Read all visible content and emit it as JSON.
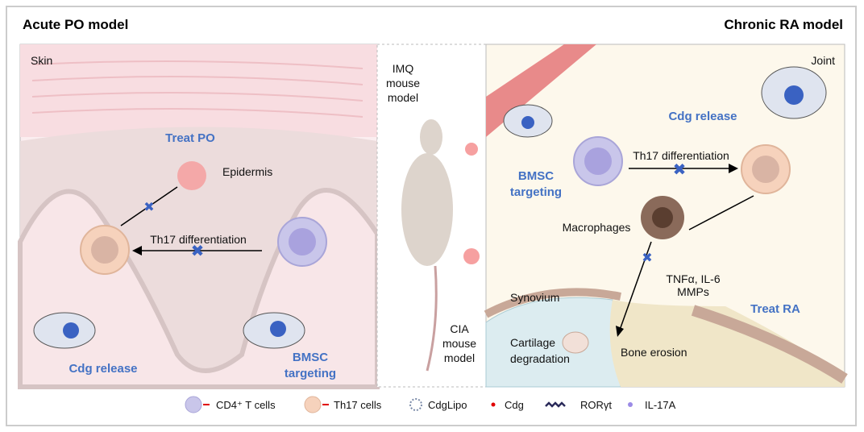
{
  "titles": {
    "left": "Acute PO model",
    "right": "Chronic RA model"
  },
  "left_panel": {
    "region": "Skin",
    "treat": "Treat PO",
    "epidermis": "Epidermis",
    "differentiation": "Th17  differentiation",
    "release": "Cdg release",
    "targeting_1": "BMSC",
    "targeting_2": "targeting"
  },
  "center": {
    "imq_1": "IMQ",
    "imq_2": "mouse",
    "imq_3": "model",
    "cia_1": "CIA",
    "cia_2": "mouse",
    "cia_3": "model"
  },
  "right_panel": {
    "region": "Joint",
    "release": "Cdg release",
    "targeting_1": "BMSC",
    "targeting_2": "targeting",
    "differentiation": "Th17  differentiation",
    "macrophages": "Macrophages",
    "cytokines_1": "TNFα, IL-6",
    "cytokines_2": "MMPs",
    "synovium": "Synovium",
    "treat": "Treat RA",
    "cartilage_1": "Cartilage",
    "cartilage_2": "degradation",
    "bone": "Bone erosion"
  },
  "legend": [
    {
      "label": "CD4⁺ T cells",
      "icon": "cd4-t-cell-icon"
    },
    {
      "label": "Th17 cells",
      "icon": "th17-cell-icon"
    },
    {
      "label": "CdgLipo",
      "icon": "liposome-icon"
    },
    {
      "label": "Cdg",
      "icon": "red-dot-icon"
    },
    {
      "label": "RORγt",
      "icon": "rorgt-icon"
    },
    {
      "label": "IL-17A",
      "icon": "purple-dot-icon"
    }
  ],
  "colors": {
    "accent_blue": "#4472c4",
    "skin": "#f6dfe2",
    "joint": "#fdf8ec",
    "cd4": "#c9c6ea",
    "th17": "#f6d2bc",
    "cdg": "#e00000",
    "il17a": "#9b8be6"
  }
}
